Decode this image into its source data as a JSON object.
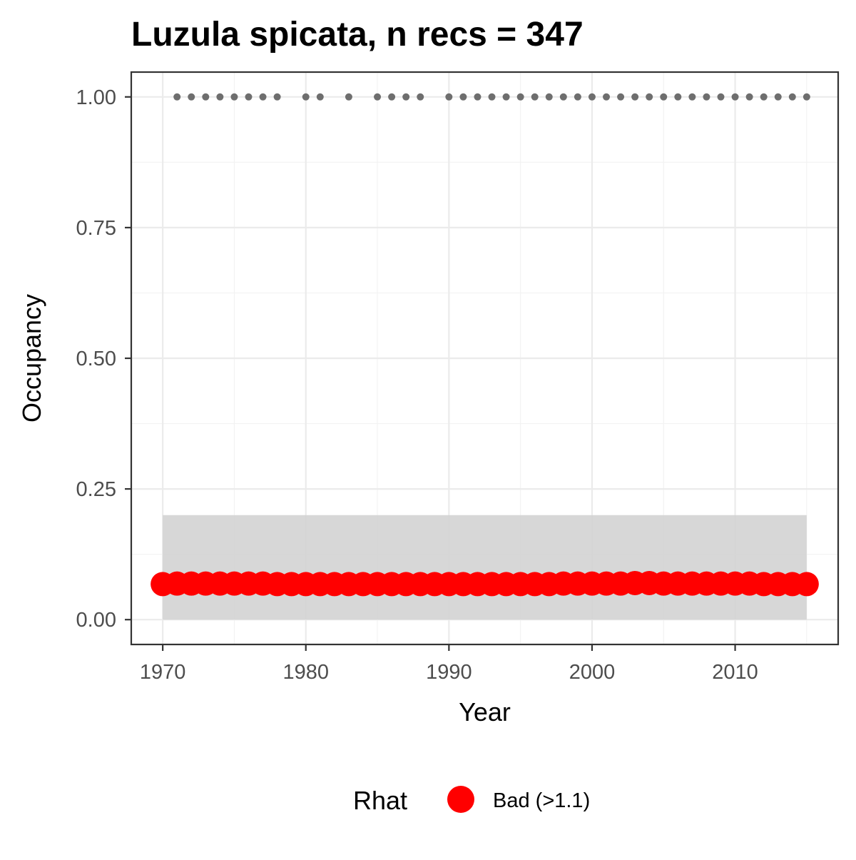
{
  "chart_data": {
    "type": "line",
    "title": "Luzula spicata, n recs = 347",
    "xlabel": "Year",
    "ylabel": "Occupancy",
    "xlim": [
      1967.8,
      2017.2
    ],
    "ylim": [
      -0.0475,
      1.0475
    ],
    "x_ticks": [
      1970,
      1980,
      1990,
      2000,
      2010
    ],
    "x_tick_labels": [
      "1970",
      "1980",
      "1990",
      "2000",
      "2010"
    ],
    "y_ticks": [
      0,
      0.25,
      0.5,
      0.75,
      1
    ],
    "y_tick_labels": [
      "0.00",
      "0.25",
      "0.50",
      "0.75",
      "1.00"
    ],
    "grid": true,
    "background": "#ffffff",
    "grid_major_color": "#ebebeb",
    "grid_minor_color": "#f2f2f2",
    "panel_border_color": "#333333",
    "series": [
      {
        "kind": "ribbon",
        "fill": "#d3d3d3",
        "x": [
          1970,
          2015
        ],
        "lower": [
          0.0,
          0.0
        ],
        "upper": [
          0.2,
          0.2
        ]
      },
      {
        "kind": "points",
        "color": "#ff0000",
        "x": [
          1970,
          1971,
          1972,
          1973,
          1974,
          1975,
          1976,
          1977,
          1978,
          1979,
          1980,
          1981,
          1982,
          1983,
          1984,
          1985,
          1986,
          1987,
          1988,
          1989,
          1990,
          1991,
          1992,
          1993,
          1994,
          1995,
          1996,
          1997,
          1998,
          1999,
          2000,
          2001,
          2002,
          2003,
          2004,
          2005,
          2006,
          2007,
          2008,
          2009,
          2010,
          2011,
          2012,
          2013,
          2014,
          2015
        ],
        "y": [
          0.068,
          0.069,
          0.069,
          0.069,
          0.069,
          0.069,
          0.069,
          0.069,
          0.068,
          0.068,
          0.068,
          0.068,
          0.068,
          0.068,
          0.068,
          0.068,
          0.068,
          0.068,
          0.068,
          0.068,
          0.068,
          0.068,
          0.068,
          0.068,
          0.068,
          0.068,
          0.068,
          0.068,
          0.069,
          0.069,
          0.069,
          0.069,
          0.069,
          0.07,
          0.07,
          0.069,
          0.069,
          0.069,
          0.069,
          0.069,
          0.069,
          0.069,
          0.068,
          0.068,
          0.068,
          0.068
        ]
      },
      {
        "kind": "records",
        "color": "#6e6e6e",
        "x": [
          1971,
          1972,
          1973,
          1974,
          1975,
          1976,
          1977,
          1978,
          1980,
          1981,
          1983,
          1985,
          1986,
          1987,
          1988,
          1990,
          1991,
          1992,
          1993,
          1994,
          1995,
          1996,
          1997,
          1998,
          1999,
          2000,
          2001,
          2002,
          2003,
          2004,
          2005,
          2006,
          2007,
          2008,
          2009,
          2010,
          2011,
          2012,
          2013,
          2014,
          2015
        ],
        "y": [
          1,
          1,
          1,
          1,
          1,
          1,
          1,
          1,
          1,
          1,
          1,
          1,
          1,
          1,
          1,
          1,
          1,
          1,
          1,
          1,
          1,
          1,
          1,
          1,
          1,
          1,
          1,
          1,
          1,
          1,
          1,
          1,
          1,
          1,
          1,
          1,
          1,
          1,
          1,
          1,
          1
        ]
      }
    ],
    "legend": {
      "title": "Rhat",
      "position": "bottom",
      "items": [
        {
          "label": "Bad (>1.1)",
          "color": "#ff0000"
        }
      ]
    }
  }
}
